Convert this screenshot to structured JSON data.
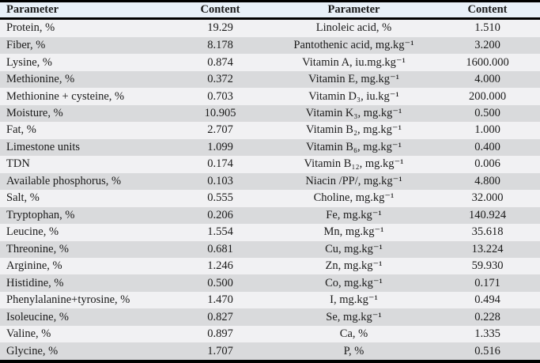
{
  "colors": {
    "header_bg": "#e8f0f8",
    "row_light": "#f1f1f3",
    "row_dark": "#d9dadc",
    "border": "#000000",
    "text": "#1a1a1a"
  },
  "table": {
    "headers": [
      "Parameter",
      "Content",
      "Parameter",
      "Content"
    ],
    "rows": [
      [
        "Protein, %",
        "19.29",
        "Linoleic acid, %",
        "1.510"
      ],
      [
        "Fiber, %",
        "8.178",
        "Pantothenic acid, mg.kg⁻¹",
        "3.200"
      ],
      [
        "Lysine, %",
        "0.874",
        "Vitamin A, iu.mg.kg⁻¹",
        "1600.000"
      ],
      [
        "Methionine, %",
        "0.372",
        "Vitamin E, mg.kg⁻¹",
        "4.000"
      ],
      [
        "Methionine + cysteine, %",
        "0.703",
        "Vitamin D₃, iu.kg⁻¹",
        "200.000"
      ],
      [
        "Moisture, %",
        "10.905",
        "Vitamin K₃, mg.kg⁻¹",
        "0.500"
      ],
      [
        "Fat, %",
        "2.707",
        "Vitamin B₂, mg.kg⁻¹",
        "1.000"
      ],
      [
        "Limestone units",
        "1.099",
        "Vitamin B₆, mg.kg⁻¹",
        "0.400"
      ],
      [
        "TDN",
        "0.174",
        "Vitamin B₁₂, mg.kg⁻¹",
        "0.006"
      ],
      [
        "Available phosphorus, %",
        "0.103",
        "Niacin /PP/, mg.kg⁻¹",
        "4.800"
      ],
      [
        "Salt, %",
        "0.555",
        "Choline, mg.kg⁻¹",
        "32.000"
      ],
      [
        "Tryptophan, %",
        "0.206",
        "Fe, mg.kg⁻¹",
        "140.924"
      ],
      [
        "Leucine, %",
        "1.554",
        "Mn, mg.kg⁻¹",
        "35.618"
      ],
      [
        "Threonine, %",
        "0.681",
        "Cu, mg.kg⁻¹",
        "13.224"
      ],
      [
        "Arginine, %",
        "1.246",
        "Zn, mg.kg⁻¹",
        "59.930"
      ],
      [
        "Histidine, %",
        "0.500",
        "Co, mg.kg⁻¹",
        "0.171"
      ],
      [
        "Phenylalanine+tyrosine, %",
        "1.470",
        "I, mg.kg⁻¹",
        "0.494"
      ],
      [
        "Isoleucine, %",
        "0.827",
        "Se, mg.kg⁻¹",
        "0.228"
      ],
      [
        "Valine, %",
        "0.897",
        "Ca, %",
        "1.335"
      ],
      [
        "Glycine, %",
        "1.707",
        "P, %",
        "0.516"
      ]
    ]
  }
}
